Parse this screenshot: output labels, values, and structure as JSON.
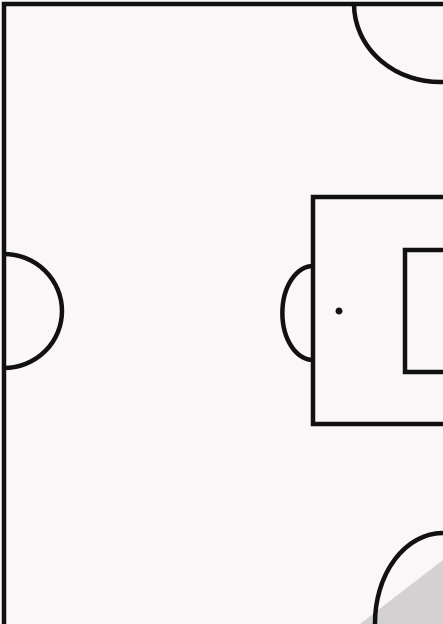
{
  "diagram": {
    "kind": "football pitch half (rotated)",
    "colors": {
      "background": "#ffffff",
      "surface": "#fbf7f8",
      "lines": "#111111",
      "corner_shadow": "#8a8a8a"
    }
  }
}
